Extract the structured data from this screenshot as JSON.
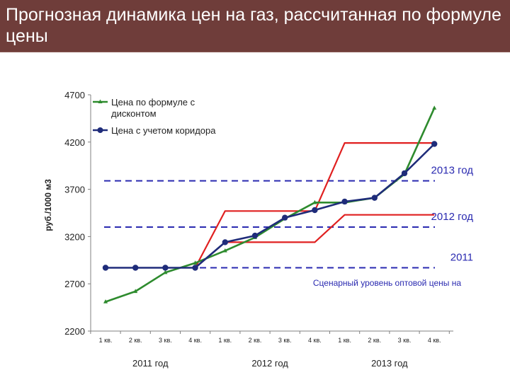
{
  "slide": {
    "title": "Прогнозная динамика цен на газ, рассчитанная по формуле цены"
  },
  "chart_data": {
    "type": "line",
    "ylabel": "руб./1000 м3",
    "ylim": [
      2200,
      4700
    ],
    "yticks": [
      2200,
      2700,
      3200,
      3700,
      4200,
      4700
    ],
    "categories": [
      "1 кв.",
      "2 кв.",
      "3 кв.",
      "4 кв.",
      "1 кв.",
      "2 кв.",
      "3 кв.",
      "4 кв.",
      "1 кв.",
      "2 кв.",
      "3 кв.",
      "4 кв."
    ],
    "year_groups": [
      {
        "label": "2011 год",
        "from": 0,
        "to": 3
      },
      {
        "label": "2012 год",
        "from": 4,
        "to": 7
      },
      {
        "label": "2013 год",
        "from": 8,
        "to": 11
      }
    ],
    "series": [
      {
        "name": "Цена по формуле с дисконтом",
        "color": "#2e8b2e",
        "marker": "triangle",
        "values": [
          2510,
          2620,
          2820,
          2920,
          3050,
          3190,
          3390,
          3560,
          3560,
          3610,
          3860,
          4560
        ]
      },
      {
        "name": "Цена с учетом коридора",
        "color": "#1f2c7a",
        "marker": "circle",
        "values": [
          2870,
          2870,
          2870,
          2870,
          3140,
          3210,
          3400,
          3480,
          3570,
          3610,
          3870,
          4180
        ]
      }
    ],
    "corridor": {
      "color": "#e02020",
      "upper": [
        null,
        null,
        null,
        2870,
        3470,
        3470,
        3470,
        3470,
        4190,
        4190,
        4190,
        4190
      ],
      "lower": [
        null,
        null,
        null,
        2870,
        3140,
        3140,
        3140,
        3140,
        3430,
        3430,
        3430,
        3430
      ]
    },
    "scenario_lines": [
      {
        "label": "2011",
        "value": 2870
      },
      {
        "label": "2012 год",
        "value": 3300
      },
      {
        "label": "2013 год",
        "value": 3790
      }
    ],
    "scenario_color": "#2a2ab0",
    "annotation": "Сценарный уровень оптовой цены на",
    "legend_position": "top-left",
    "grid": false
  }
}
